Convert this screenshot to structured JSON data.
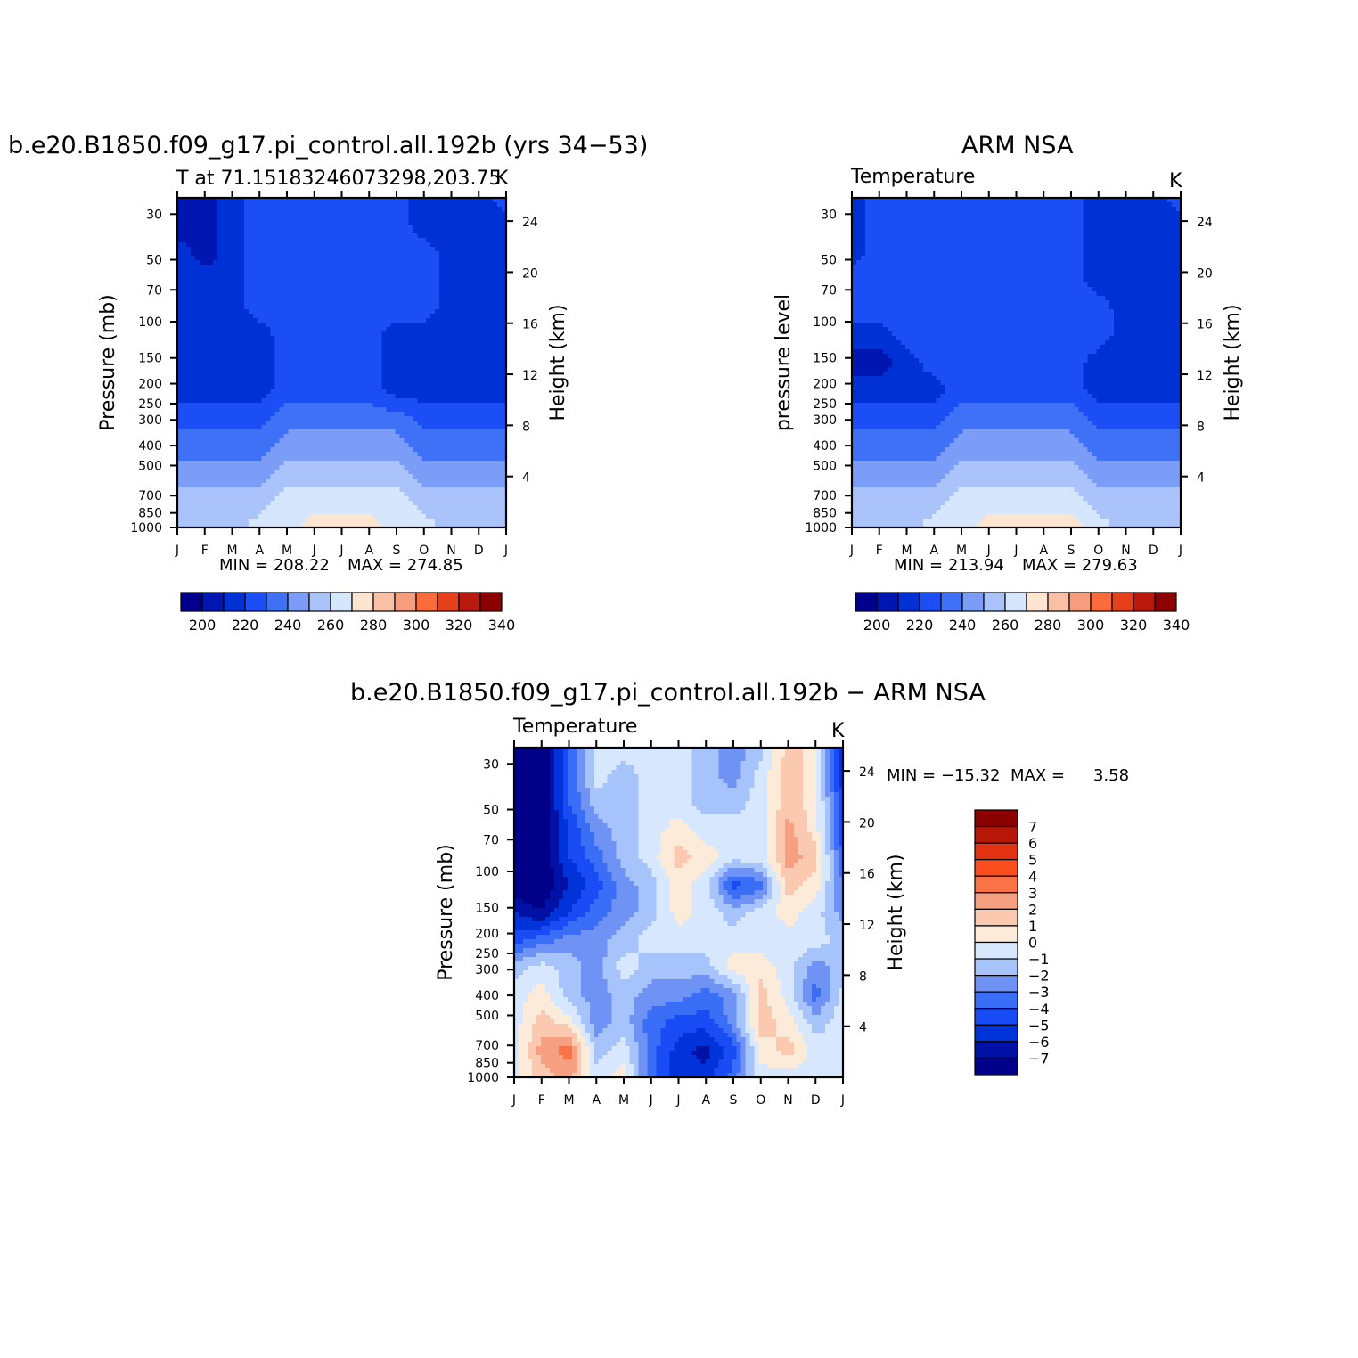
{
  "colors": {
    "abs_levels": [
      "#00008b",
      "#0016b0",
      "#0031d5",
      "#1c4ef5",
      "#3f71f7",
      "#7b9cf7",
      "#aac4fb",
      "#d6e6fc",
      "#fde5d2",
      "#fac0a6",
      "#f79c7c",
      "#fb6b3b",
      "#e4401a",
      "#b91a0d",
      "#8b0000"
    ],
    "diff_levels": [
      "#000089",
      "#0011a6",
      "#0033d9",
      "#1a4cf5",
      "#3b6ef6",
      "#6f93f5",
      "#a6c3fc",
      "#d7e7fd",
      "#fdebd9",
      "#fbc9b0",
      "#f6a081",
      "#fa7347",
      "#fd4e1f",
      "#e13312",
      "#b61708",
      "#8b0000"
    ]
  },
  "chart_data": [
    {
      "id": "model",
      "type": "heatmap",
      "title": "b.e20.B1850.f09_g17.pi_control.all.192b (yrs 34−53)",
      "subtitle": "T at 71.15183246073298,203.75",
      "units": "K",
      "ylabel": "Pressure (mb)",
      "ylabel_right": "Height (km)",
      "x_ticks": [
        "J",
        "F",
        "M",
        "A",
        "M",
        "J",
        "J",
        "A",
        "S",
        "O",
        "N",
        "D",
        "J"
      ],
      "y_ticks": [
        30,
        50,
        70,
        100,
        150,
        200,
        250,
        300,
        400,
        500,
        700,
        850,
        1000
      ],
      "y_ticks_right": [
        24,
        20,
        16,
        12,
        8,
        4
      ],
      "ylim": [
        1000,
        25
      ],
      "yscale": "log",
      "min_label": "MIN = 208.22",
      "max_label": "MAX = 274.85",
      "colorbar_labels": [
        "200",
        "220",
        "240",
        "260",
        "280",
        "300",
        "320",
        "340"
      ],
      "grid": [
        [
          -5.5,
          -5.5,
          -4.5,
          -3.5,
          -3.5,
          -3.5,
          -3.5,
          -3.5,
          -3.5,
          -4.5,
          -4.5,
          -4.5,
          -3.5
        ],
        [
          -5.5,
          -5.5,
          -4.5,
          -3.5,
          -3.5,
          -3.5,
          -3.5,
          -3.5,
          -3.5,
          -4.5,
          -4.5,
          -4.5,
          -4.5
        ],
        [
          -4.5,
          -5.5,
          -4.5,
          -3.5,
          -3.5,
          -3.5,
          -3.5,
          -3.5,
          -3.5,
          -3.5,
          -4.5,
          -4.5,
          -4.5
        ],
        [
          -4.5,
          -4.5,
          -4.5,
          -3.5,
          -3.5,
          -3.5,
          -3.5,
          -3.5,
          -3.5,
          -3.5,
          -4.5,
          -4.5,
          -4.5
        ],
        [
          -4.5,
          -4.5,
          -4.5,
          -3.5,
          -3.5,
          -3.5,
          -3.5,
          -3.5,
          -3.5,
          -3.5,
          -4.5,
          -4.5,
          -4.5
        ],
        [
          -4.5,
          -4.5,
          -4.5,
          -4.5,
          -3.5,
          -3.5,
          -3.5,
          -3.5,
          -4.5,
          -4.5,
          -4.5,
          -4.5,
          -4.5
        ],
        [
          -4.5,
          -4.5,
          -4.5,
          -4.5,
          -3.5,
          -3.5,
          -3.5,
          -3.5,
          -4.5,
          -4.5,
          -4.5,
          -4.5,
          -4.5
        ],
        [
          -4.5,
          -4.5,
          -4.5,
          -4.5,
          -3.5,
          -3.5,
          -3.5,
          -3.5,
          -4.5,
          -4.5,
          -4.5,
          -4.5,
          -4.5
        ],
        [
          -3.5,
          -3.5,
          -3.5,
          -3.5,
          -2.5,
          -2.5,
          -2.5,
          -2.5,
          -2.5,
          -3.5,
          -3.5,
          -3.5,
          -3.5
        ],
        [
          -2.5,
          -2.5,
          -2.5,
          -2.5,
          -1.5,
          -1.5,
          -1.5,
          -1.5,
          -1.5,
          -2.5,
          -2.5,
          -2.5,
          -2.5
        ],
        [
          -1.5,
          -1.5,
          -1.5,
          -1.5,
          -0.5,
          -0.5,
          -0.5,
          -0.5,
          -0.5,
          -1.5,
          -1.5,
          -1.5,
          -1.5
        ],
        [
          -0.5,
          -0.5,
          -0.5,
          -0.5,
          0.5,
          0.5,
          0.5,
          0.5,
          0.5,
          -0.5,
          -0.5,
          -0.5,
          -0.5
        ],
        [
          -0.5,
          -0.5,
          -0.5,
          0.5,
          0.5,
          1.5,
          1.5,
          1.5,
          0.5,
          0.5,
          -0.5,
          -0.5,
          -0.5
        ]
      ]
    },
    {
      "id": "obs",
      "type": "heatmap",
      "title": "ARM NSA",
      "subtitle": "Temperature",
      "units": "K",
      "ylabel": "pressure level",
      "ylabel_right": "Height (km)",
      "x_ticks": [
        "J",
        "F",
        "M",
        "A",
        "M",
        "J",
        "J",
        "A",
        "S",
        "O",
        "N",
        "D",
        "J"
      ],
      "y_ticks": [
        30,
        50,
        70,
        100,
        150,
        200,
        250,
        300,
        400,
        500,
        700,
        850,
        1000
      ],
      "y_ticks_right": [
        24,
        20,
        16,
        12,
        8,
        4
      ],
      "ylim": [
        1000,
        25
      ],
      "yscale": "log",
      "min_label": "MIN = 213.94",
      "max_label": "MAX = 279.63",
      "colorbar_labels": [
        "200",
        "220",
        "240",
        "260",
        "280",
        "300",
        "320",
        "340"
      ],
      "grid": [
        [
          -4.5,
          -3.5,
          -3.5,
          -3.5,
          -3.5,
          -3.5,
          -3.5,
          -3.5,
          -3.5,
          -4.5,
          -4.5,
          -4.5,
          -3.5
        ],
        [
          -4.5,
          -3.5,
          -3.5,
          -3.5,
          -3.5,
          -3.5,
          -3.5,
          -3.5,
          -3.5,
          -4.5,
          -4.5,
          -4.5,
          -4.5
        ],
        [
          -4.5,
          -3.5,
          -3.5,
          -3.5,
          -3.5,
          -3.5,
          -3.5,
          -3.5,
          -3.5,
          -4.5,
          -4.5,
          -4.5,
          -4.5
        ],
        [
          -3.5,
          -3.5,
          -3.5,
          -3.5,
          -3.5,
          -3.5,
          -3.5,
          -3.5,
          -3.5,
          -4.5,
          -4.5,
          -4.5,
          -4.5
        ],
        [
          -3.5,
          -3.5,
          -3.5,
          -3.5,
          -3.5,
          -3.5,
          -3.5,
          -3.5,
          -3.5,
          -3.5,
          -4.5,
          -4.5,
          -4.5
        ],
        [
          -4.5,
          -4.5,
          -3.5,
          -3.5,
          -3.5,
          -3.5,
          -3.5,
          -3.5,
          -3.5,
          -3.5,
          -4.5,
          -4.5,
          -4.5
        ],
        [
          -5.5,
          -5.5,
          -4.5,
          -3.5,
          -3.5,
          -3.5,
          -3.5,
          -3.5,
          -3.5,
          -4.5,
          -4.5,
          -4.5,
          -4.5
        ],
        [
          -4.5,
          -4.5,
          -4.5,
          -4.5,
          -3.5,
          -3.5,
          -3.5,
          -3.5,
          -3.5,
          -4.5,
          -4.5,
          -4.5,
          -4.5
        ],
        [
          -3.5,
          -3.5,
          -3.5,
          -3.5,
          -2.5,
          -2.5,
          -2.5,
          -2.5,
          -2.5,
          -3.5,
          -3.5,
          -3.5,
          -3.5
        ],
        [
          -2.5,
          -2.5,
          -2.5,
          -2.5,
          -1.5,
          -1.5,
          -1.5,
          -1.5,
          -1.5,
          -2.5,
          -2.5,
          -2.5,
          -2.5
        ],
        [
          -1.5,
          -1.5,
          -1.5,
          -1.5,
          -0.5,
          -0.5,
          -0.5,
          -0.5,
          -0.5,
          -1.5,
          -1.5,
          -1.5,
          -1.5
        ],
        [
          -0.5,
          -0.5,
          -0.5,
          -0.5,
          0.5,
          0.5,
          0.5,
          0.5,
          0.5,
          -0.5,
          -0.5,
          -0.5,
          -0.5
        ],
        [
          -0.5,
          -0.5,
          -0.5,
          0.5,
          0.5,
          1.5,
          1.5,
          1.5,
          1.5,
          0.5,
          -0.5,
          -0.5,
          -0.5
        ]
      ]
    },
    {
      "id": "diff",
      "type": "heatmap",
      "title": "b.e20.B1850.f09_g17.pi_control.all.192b − ARM NSA",
      "subtitle": "Temperature",
      "units": "K",
      "ylabel": "Pressure (mb)",
      "ylabel_right": "Height (km)",
      "x_ticks": [
        "J",
        "F",
        "M",
        "A",
        "M",
        "J",
        "J",
        "A",
        "S",
        "O",
        "N",
        "D",
        "J"
      ],
      "y_ticks": [
        30,
        50,
        70,
        100,
        150,
        200,
        250,
        300,
        400,
        500,
        700,
        850,
        1000
      ],
      "y_ticks_right": [
        24,
        20,
        16,
        12,
        8,
        4
      ],
      "ylim": [
        1000,
        25
      ],
      "yscale": "log",
      "min_label": "MIN = −15.32",
      "max_label": "MAX =",
      "max_value": "3.58",
      "colorbar_labels": [
        "7",
        "6",
        "5",
        "4",
        "3",
        "2",
        "1",
        "0",
        "−1",
        "−2",
        "−3",
        "−4",
        "−5",
        "−6",
        "−7"
      ],
      "grid": [
        [
          -8,
          -8,
          -4,
          -0.5,
          -0.5,
          -0.5,
          -0.5,
          -1.5,
          -2.5,
          -1.5,
          1.5,
          0.5,
          -6
        ],
        [
          -8,
          -8,
          -4,
          -0.5,
          -1.5,
          -0.5,
          -0.5,
          -1.5,
          -2.5,
          -0.5,
          1.5,
          0.5,
          -6
        ],
        [
          -8,
          -8,
          -4,
          -1.5,
          -1.5,
          -0.5,
          -0.5,
          -1.5,
          -1.5,
          -0.5,
          1.5,
          0.5,
          -5
        ],
        [
          -8,
          -8,
          -5,
          -2.5,
          -1.5,
          -0.5,
          0.5,
          -0.5,
          -0.5,
          -0.5,
          2.5,
          0.5,
          -5
        ],
        [
          -8,
          -8,
          -5,
          -3.5,
          -1.5,
          -0.5,
          1.5,
          0.5,
          -0.5,
          -0.5,
          2.5,
          1.5,
          -4
        ],
        [
          -8,
          -8,
          -6,
          -4.5,
          -2.5,
          -1.5,
          0.5,
          -0.5,
          -4.5,
          -3.5,
          1.5,
          0.5,
          -3
        ],
        [
          -6,
          -7,
          -5,
          -3.5,
          -2.5,
          -1.5,
          0.5,
          -0.5,
          -1.5,
          -0.5,
          0.5,
          -0.5,
          -2.5
        ],
        [
          -4.5,
          -3.5,
          -2.5,
          -2.5,
          -1.5,
          -0.5,
          -0.5,
          -0.5,
          -0.5,
          -0.5,
          -0.5,
          -0.5,
          -1.5
        ],
        [
          -1.5,
          -0.5,
          -1.5,
          -2.5,
          -0.5,
          -1.5,
          -1.5,
          -1.5,
          0.5,
          0.5,
          -0.5,
          -2.5,
          -1.5
        ],
        [
          -0.5,
          0.5,
          -1.5,
          -2.5,
          -1.5,
          -2.5,
          -2.5,
          -3.5,
          -2.5,
          1.5,
          -0.5,
          -3.5,
          -0.5
        ],
        [
          -0.5,
          1.5,
          0.5,
          -2.5,
          -1.5,
          -3.5,
          -4.5,
          -4.5,
          -2.5,
          1.5,
          0.5,
          -1.5,
          -0.5
        ],
        [
          -0.5,
          2.5,
          3.5,
          -1.5,
          -0.5,
          -3.5,
          -5.5,
          -6.5,
          -4.5,
          0.5,
          1.5,
          -0.5,
          -0.5
        ],
        [
          -0.5,
          1.5,
          2.5,
          -0.5,
          0.5,
          -3.5,
          -5.5,
          -5.5,
          -3.5,
          -0.5,
          -0.5,
          -0.5,
          -0.5
        ]
      ]
    }
  ]
}
